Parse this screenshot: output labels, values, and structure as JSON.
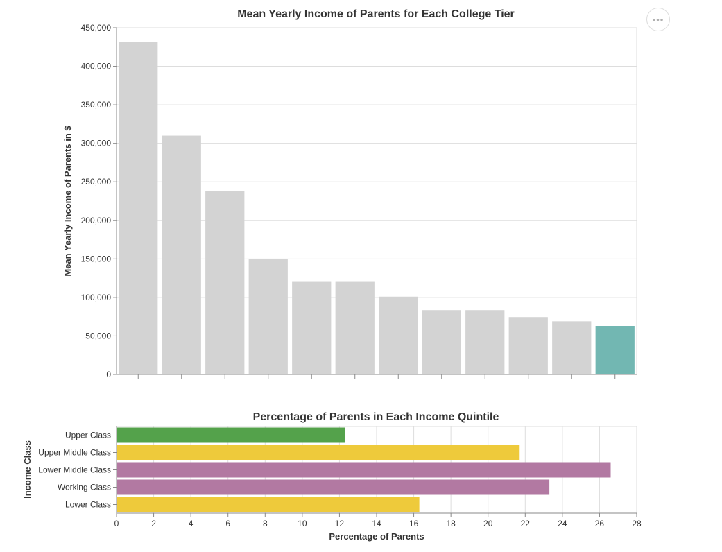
{
  "actions_menu": {
    "icon": "more-horizontal-icon",
    "glyph": "•••"
  },
  "chart_data": [
    {
      "type": "bar",
      "title": "Mean Yearly Income of Parents for Each College Tier",
      "xlabel": "",
      "ylabel": "Mean Yearly Income of Parents in $",
      "ylim": [
        0,
        450000
      ],
      "yticks": [
        "0",
        "50,000",
        "100,000",
        "150,000",
        "200,000",
        "250,000",
        "300,000",
        "350,000",
        "400,000",
        "450,000"
      ],
      "ytick_values": [
        0,
        50000,
        100000,
        150000,
        200000,
        250000,
        300000,
        350000,
        400000,
        450000
      ],
      "values": [
        432000,
        310000,
        238000,
        150000,
        121000,
        121000,
        101000,
        83500,
        83500,
        74500,
        69000,
        63000
      ],
      "colors": [
        "#d3d3d3",
        "#d3d3d3",
        "#d3d3d3",
        "#d3d3d3",
        "#d3d3d3",
        "#d3d3d3",
        "#d3d3d3",
        "#d3d3d3",
        "#d3d3d3",
        "#d3d3d3",
        "#d3d3d3",
        "#72b7b2"
      ],
      "grid": true
    },
    {
      "type": "bar",
      "orientation": "horizontal",
      "title": "Percentage of Parents in Each Income Quintile",
      "xlabel": "Percentage of Parents",
      "ylabel": "Income Class",
      "xlim": [
        0,
        28
      ],
      "xticks": [
        "0",
        "2",
        "4",
        "6",
        "8",
        "10",
        "12",
        "14",
        "16",
        "18",
        "20",
        "22",
        "24",
        "26",
        "28"
      ],
      "xtick_values": [
        0,
        2,
        4,
        6,
        8,
        10,
        12,
        14,
        16,
        18,
        20,
        22,
        24,
        26,
        28
      ],
      "categories": [
        "Upper Class",
        "Upper Middle Class",
        "Lower Middle Class",
        "Working Class",
        "Lower Class"
      ],
      "values": [
        12.3,
        21.7,
        26.6,
        23.3,
        16.3
      ],
      "colors": [
        "#54a24b",
        "#eeca3b",
        "#b279a2",
        "#b279a2",
        "#eeca3b"
      ],
      "grid": true
    }
  ]
}
